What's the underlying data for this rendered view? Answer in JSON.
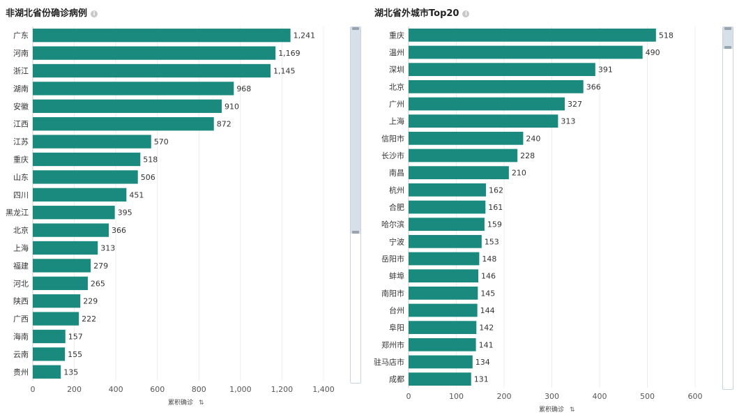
{
  "left": {
    "title": "非湖北省份确诊病例",
    "info_icon": "info-icon",
    "xlabel": "累积确诊",
    "sort_icon": "sort-icon",
    "chart_data": {
      "type": "bar",
      "orientation": "horizontal",
      "categories": [
        "广东",
        "河南",
        "浙江",
        "湖南",
        "安徽",
        "江西",
        "江苏",
        "重庆",
        "山东",
        "四川",
        "黑龙江",
        "北京",
        "上海",
        "福建",
        "河北",
        "陕西",
        "广西",
        "海南",
        "云南",
        "贵州"
      ],
      "values": [
        1241,
        1169,
        1145,
        968,
        910,
        872,
        570,
        518,
        506,
        451,
        395,
        366,
        313,
        279,
        265,
        229,
        222,
        157,
        155,
        135
      ],
      "value_labels": [
        "1,241",
        "1,169",
        "1,145",
        "968",
        "910",
        "872",
        "570",
        "518",
        "506",
        "451",
        "395",
        "366",
        "313",
        "279",
        "265",
        "229",
        "222",
        "157",
        "155",
        "135"
      ],
      "xticks": [
        "0",
        "200",
        "400",
        "600",
        "800",
        "1,000",
        "1,200",
        "1,400"
      ],
      "xlim": [
        0,
        1400
      ],
      "bar_color": "#1a8a7e",
      "grid": true,
      "scroll_fraction": 0.58
    }
  },
  "right": {
    "title": "湖北省外城市Top20",
    "info_icon": "info-icon",
    "xlabel": "累积确诊",
    "sort_icon": "sort-icon",
    "chart_data": {
      "type": "bar",
      "orientation": "horizontal",
      "categories": [
        "重庆",
        "温州",
        "深圳",
        "北京",
        "广州",
        "上海",
        "信阳市",
        "长沙市",
        "南昌",
        "杭州",
        "合肥",
        "哈尔滨",
        "宁波",
        "岳阳市",
        "蚌埠",
        "南阳市",
        "台州",
        "阜阳",
        "郑州市",
        "驻马店市",
        "成都"
      ],
      "values": [
        518,
        490,
        391,
        366,
        327,
        313,
        240,
        228,
        210,
        162,
        161,
        159,
        153,
        148,
        146,
        145,
        144,
        142,
        141,
        134,
        131
      ],
      "value_labels": [
        "518",
        "490",
        "391",
        "366",
        "327",
        "313",
        "240",
        "228",
        "210",
        "162",
        "161",
        "159",
        "153",
        "148",
        "146",
        "145",
        "144",
        "142",
        "141",
        "134",
        "131"
      ],
      "xticks": [
        "0",
        "100",
        "200",
        "300",
        "400",
        "500",
        "600"
      ],
      "xlim": [
        0,
        600
      ],
      "bar_color": "#1a8a7e",
      "grid": true,
      "scroll_fraction": 0.06
    }
  }
}
